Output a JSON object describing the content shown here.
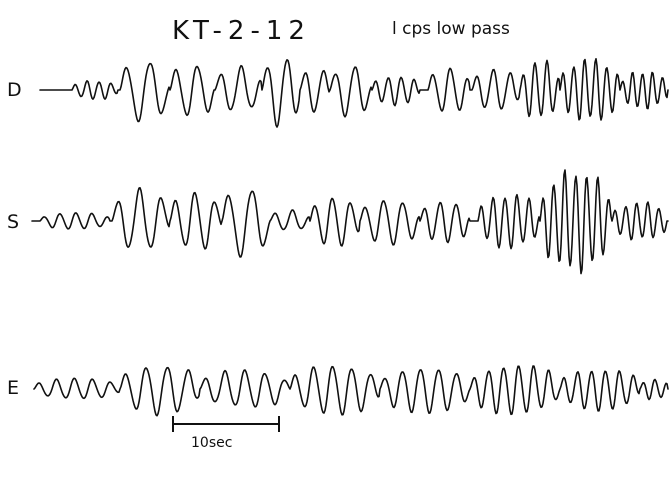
{
  "figure": {
    "title": "KT-2-12",
    "subtitle": "l cps low pass",
    "ink_color": "#111111",
    "background_color": "#ffffff"
  },
  "traces": [
    {
      "id": "D",
      "label": "D"
    },
    {
      "id": "S",
      "label": "S"
    },
    {
      "id": "E",
      "label": "E"
    }
  ],
  "scale_bar": {
    "label": "10sec"
  }
}
